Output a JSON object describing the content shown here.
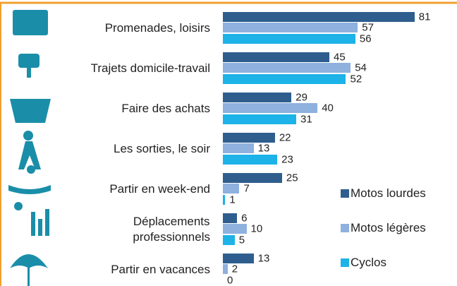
{
  "chart_data": {
    "type": "bar",
    "orientation": "horizontal",
    "categories": [
      "Promenades, loisirs",
      "Trajets domicile-travail",
      "Faire des achats",
      "Les sorties, le soir",
      "Partir en week-end",
      "Déplacements\nprofessionnels",
      "Partir en vacances"
    ],
    "series": [
      {
        "name": "Motos lourdes",
        "color": "#2f5e8e",
        "values": [
          81,
          45,
          29,
          22,
          25,
          6,
          13
        ]
      },
      {
        "name": "Motos légères",
        "color": "#8eb1de",
        "values": [
          57,
          54,
          40,
          13,
          7,
          10,
          2
        ]
      },
      {
        "name": "Cyclos",
        "color": "#1db3e8",
        "values": [
          56,
          52,
          31,
          23,
          1,
          5,
          0
        ]
      }
    ],
    "xlim": [
      0,
      90
    ],
    "legend": "bottom-right"
  }
}
